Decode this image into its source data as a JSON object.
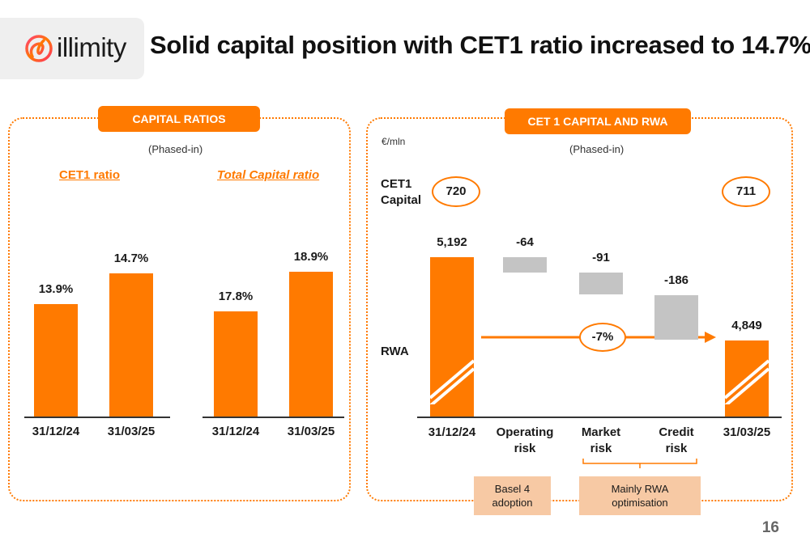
{
  "header": {
    "brand": "illimity",
    "title": "Solid capital position with CET1 ratio increased to 14.7%"
  },
  "left_panel": {
    "pill": "CAPITAL RATIOS",
    "phased": "(Phased-in)",
    "cet1_label": "CET1 ratio",
    "total_label": "Total Capital ratio"
  },
  "right_panel": {
    "pill": "CET 1 CAPITAL AND RWA",
    "unit": "€/mln",
    "phased": "(Phased-in)",
    "cet1_capital_label_1": "CET1",
    "cet1_capital_label_2": "Capital",
    "cet1_start": "720",
    "cet1_end": "711",
    "rwa_label": "RWA",
    "change": "-7%",
    "note_basel_1": "Basel 4",
    "note_basel_2": "adoption",
    "note_rwa_1": "Mainly RWA",
    "note_rwa_2": "optimisation"
  },
  "colors": {
    "accent": "#ff7a00",
    "grey": "#c4c4c4",
    "note": "#f7c9a4"
  },
  "page_number": "16",
  "chart_data": [
    {
      "type": "bar",
      "title": "CET1 ratio",
      "categories": [
        "31/12/24",
        "31/03/25"
      ],
      "values": [
        13.9,
        14.7
      ],
      "labels": [
        "13.9%",
        "14.7%"
      ],
      "ylim": [
        11.0,
        15.5
      ]
    },
    {
      "type": "bar",
      "title": "Total Capital ratio",
      "categories": [
        "31/12/24",
        "31/03/25"
      ],
      "values": [
        17.8,
        18.9
      ],
      "labels": [
        "17.8%",
        "18.9%"
      ],
      "ylim": [
        14.9,
        19.7
      ]
    },
    {
      "type": "bar",
      "subtype": "waterfall",
      "title": "RWA",
      "categories": [
        "31/12/24",
        "Operating risk",
        "Market risk",
        "Credit risk",
        "31/03/25"
      ],
      "category_lines": [
        [
          "31/12/24"
        ],
        [
          "Operating",
          "risk"
        ],
        [
          "Market",
          "risk"
        ],
        [
          "Credit",
          "risk"
        ],
        [
          "31/03/25"
        ]
      ],
      "values": [
        5192,
        -64,
        -91,
        -186,
        4849
      ],
      "labels": [
        "5,192",
        "-64",
        "-91",
        "-186",
        "4,849"
      ],
      "kinds": [
        "total",
        "delta",
        "delta",
        "delta",
        "total"
      ],
      "axis_break": true
    }
  ]
}
